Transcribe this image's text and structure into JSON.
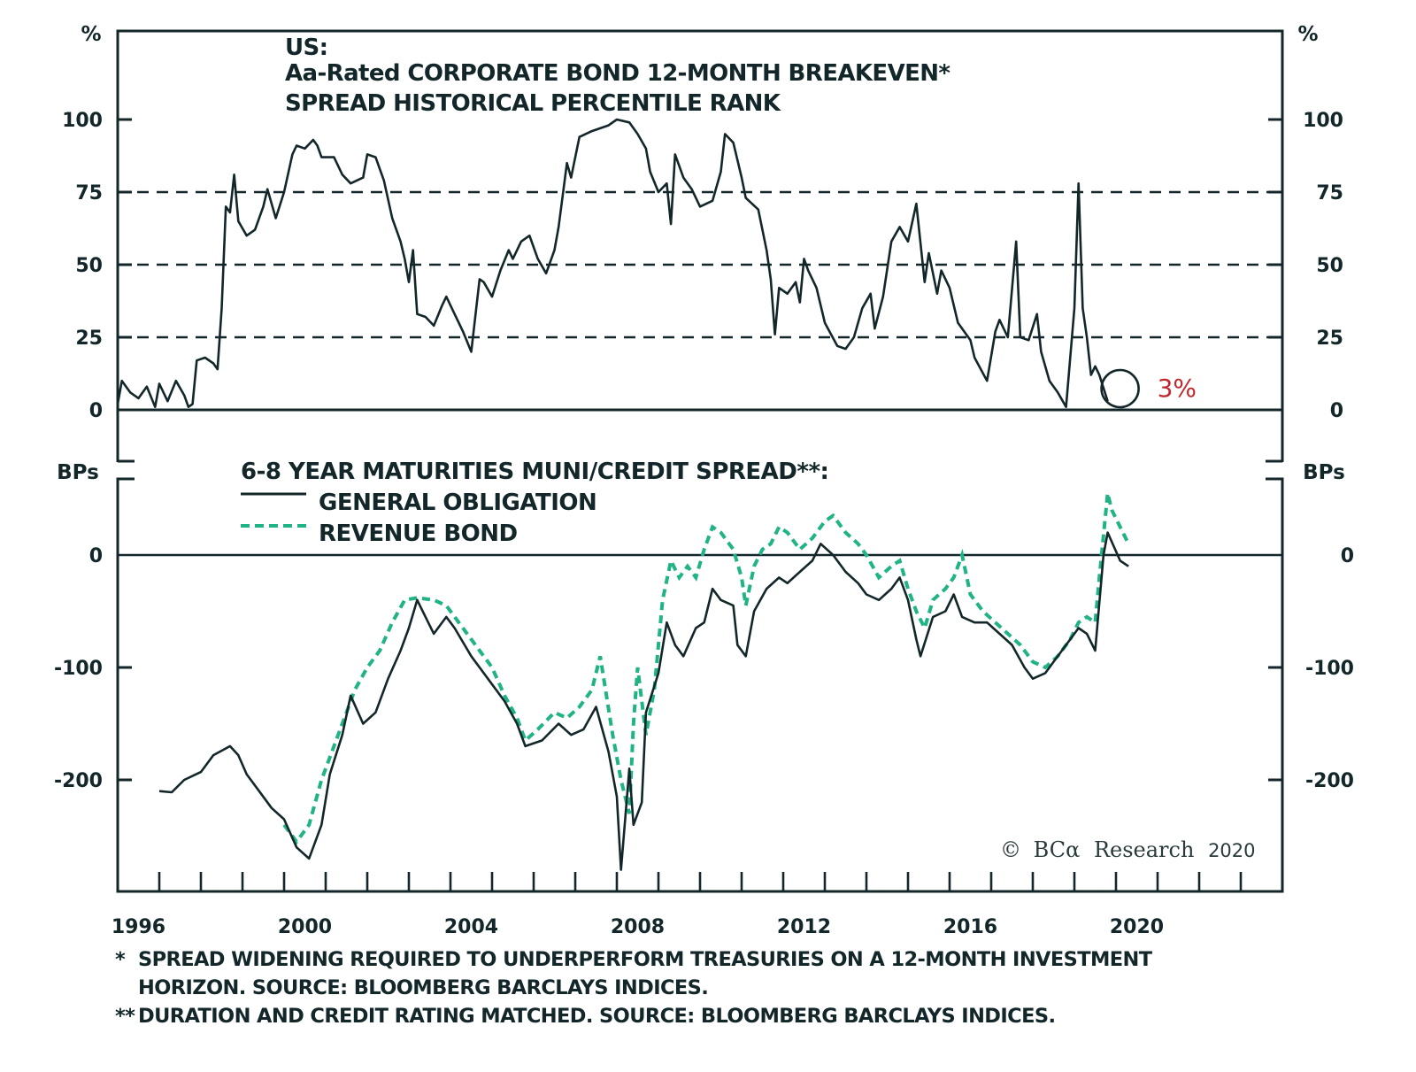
{
  "chart_data": [
    {
      "type": "line",
      "panel": "top",
      "title_lines": [
        "US:",
        "Aa-Rated CORPORATE BOND 12-MONTH BREAKEVEN*",
        "SPREAD HISTORICAL PERCENTILE RANK"
      ],
      "ylabel": "%",
      "ylim": [
        0,
        100
      ],
      "yticks": [
        0,
        25,
        50,
        75,
        100
      ],
      "ytick_labels": [
        "0",
        "25",
        "50",
        "75",
        "100"
      ],
      "reference_lines": [
        25,
        50,
        75
      ],
      "reference_style": "dashed",
      "annotation": {
        "text": "3%",
        "x": 2019.8,
        "y": 3,
        "marker": "circle",
        "color": "#c0282e"
      },
      "series": [
        {
          "name": "Aa-Rated corporate bond 12-month breakeven spread percentile rank",
          "color": "#13272a",
          "style": "solid",
          "x": [
            1996.0,
            1996.1,
            1996.3,
            1996.5,
            1996.7,
            1996.9,
            1997.0,
            1997.2,
            1997.4,
            1997.6,
            1997.7,
            1997.8,
            1997.9,
            1998.1,
            1998.3,
            1998.4,
            1998.5,
            1998.6,
            1998.7,
            1998.8,
            1998.9,
            1999.1,
            1999.3,
            1999.5,
            1999.6,
            1999.8,
            2000.0,
            2000.2,
            2000.3,
            2000.5,
            2000.7,
            2000.8,
            2000.9,
            2001.2,
            2001.4,
            2001.6,
            2001.9,
            2002.0,
            2002.2,
            2002.4,
            2002.6,
            2002.8,
            2002.9,
            2003.0,
            2003.1,
            2003.2,
            2003.4,
            2003.6,
            2003.8,
            2003.9,
            2004.1,
            2004.3,
            2004.5,
            2004.7,
            2004.8,
            2005.0,
            2005.2,
            2005.4,
            2005.5,
            2005.7,
            2005.9,
            2006.1,
            2006.3,
            2006.5,
            2006.6,
            2006.8,
            2006.9,
            2007.1,
            2007.4,
            2007.8,
            2008.0,
            2008.3,
            2008.5,
            2008.7,
            2008.8,
            2009.0,
            2009.2,
            2009.3,
            2009.4,
            2009.6,
            2009.8,
            2010.0,
            2010.3,
            2010.5,
            2010.6,
            2010.8,
            2011.0,
            2011.1,
            2011.4,
            2011.6,
            2011.7,
            2011.8,
            2011.9,
            2012.1,
            2012.3,
            2012.4,
            2012.5,
            2012.6,
            2012.8,
            2013.0,
            2013.3,
            2013.5,
            2013.7,
            2013.9,
            2014.1,
            2014.2,
            2014.4,
            2014.6,
            2014.8,
            2015.0,
            2015.2,
            2015.4,
            2015.5,
            2015.7,
            2015.8,
            2016.0,
            2016.2,
            2016.5,
            2016.6,
            2016.9,
            2017.1,
            2017.2,
            2017.4,
            2017.6,
            2017.7,
            2017.9,
            2018.1,
            2018.2,
            2018.4,
            2018.6,
            2018.8,
            2019.0,
            2019.1,
            2019.2,
            2019.3,
            2019.4,
            2019.5,
            2019.6,
            2019.8
          ],
          "y": [
            2,
            10,
            6,
            4,
            8,
            1,
            9,
            3,
            10,
            5,
            1,
            2,
            17,
            18,
            16,
            14,
            35,
            70,
            68,
            81,
            65,
            60,
            62,
            70,
            76,
            66,
            75,
            88,
            91,
            90,
            93,
            91,
            87,
            87,
            81,
            78,
            80,
            88,
            87,
            79,
            66,
            58,
            52,
            44,
            55,
            33,
            32,
            29,
            36,
            39,
            33,
            27,
            20,
            45,
            44,
            39,
            48,
            55,
            52,
            58,
            60,
            52,
            47,
            55,
            63,
            85,
            80,
            94,
            96,
            98,
            100,
            99,
            95,
            90,
            82,
            75,
            78,
            64,
            88,
            80,
            76,
            70,
            72,
            82,
            95,
            92,
            80,
            73,
            69,
            55,
            45,
            26,
            42,
            40,
            44,
            37,
            52,
            48,
            42,
            30,
            22,
            21,
            25,
            35,
            40,
            28,
            39,
            58,
            63,
            58,
            71,
            44,
            54,
            40,
            48,
            42,
            30,
            24,
            18,
            10,
            27,
            31,
            25,
            58,
            25,
            24,
            33,
            20,
            10,
            6,
            1,
            35,
            78,
            35,
            25,
            12,
            15,
            12,
            3
          ]
        }
      ]
    },
    {
      "type": "line",
      "panel": "bottom",
      "title": "6-8 YEAR MATURITIES MUNI/CREDIT SPREAD**:",
      "ylabel": "BPs",
      "ylim": [
        -290,
        75
      ],
      "yticks": [
        -200,
        -100,
        0
      ],
      "ytick_labels": [
        "-200",
        "-100",
        "0"
      ],
      "reference_lines": [
        0
      ],
      "legend": "top-left",
      "series": [
        {
          "name": "GENERAL OBLIGATION",
          "color": "#13272a",
          "style": "solid",
          "x": [
            1997.0,
            1997.3,
            1997.6,
            1998.0,
            1998.3,
            1998.7,
            1998.9,
            1999.1,
            1999.4,
            1999.7,
            2000.0,
            2000.3,
            2000.6,
            2000.9,
            2001.1,
            2001.4,
            2001.6,
            2001.9,
            2002.2,
            2002.5,
            2002.8,
            2003.0,
            2003.2,
            2003.4,
            2003.6,
            2003.9,
            2004.1,
            2004.5,
            2004.9,
            2005.3,
            2005.6,
            2005.8,
            2006.2,
            2006.6,
            2006.9,
            2007.2,
            2007.5,
            2007.8,
            2008.0,
            2008.1,
            2008.3,
            2008.4,
            2008.6,
            2008.7,
            2009.0,
            2009.2,
            2009.4,
            2009.6,
            2009.9,
            2010.1,
            2010.3,
            2010.5,
            2010.8,
            2010.9,
            2011.1,
            2011.3,
            2011.6,
            2011.9,
            2012.1,
            2012.4,
            2012.7,
            2012.9,
            2013.2,
            2013.5,
            2013.8,
            2014.0,
            2014.3,
            2014.6,
            2014.8,
            2015.0,
            2015.2,
            2015.3,
            2015.6,
            2015.9,
            2016.1,
            2016.3,
            2016.6,
            2016.9,
            2017.2,
            2017.5,
            2017.8,
            2018.0,
            2018.3,
            2018.5,
            2018.8,
            2019.1,
            2019.3,
            2019.5,
            2019.7,
            2019.8,
            2020.1,
            2020.3
          ],
          "y": [
            -210,
            -211,
            -200,
            -193,
            -178,
            -170,
            -178,
            -195,
            -210,
            -225,
            -235,
            -260,
            -270,
            -240,
            -195,
            -160,
            -125,
            -150,
            -140,
            -110,
            -85,
            -65,
            -40,
            -55,
            -70,
            -55,
            -65,
            -90,
            -110,
            -130,
            -150,
            -170,
            -165,
            -150,
            -160,
            -155,
            -135,
            -175,
            -215,
            -280,
            -190,
            -240,
            -220,
            -140,
            -105,
            -60,
            -80,
            -90,
            -65,
            -60,
            -30,
            -40,
            -45,
            -80,
            -90,
            -50,
            -30,
            -20,
            -25,
            -15,
            -5,
            10,
            0,
            -15,
            -25,
            -35,
            -40,
            -30,
            -20,
            -40,
            -75,
            -90,
            -55,
            -50,
            -35,
            -55,
            -60,
            -60,
            -70,
            -80,
            -100,
            -110,
            -105,
            -95,
            -80,
            -65,
            -70,
            -85,
            0,
            20,
            -5,
            -10
          ]
        },
        {
          "name": "REVENUE BOND",
          "color": "#1fb386",
          "style": "dashed",
          "x": [
            2000.0,
            2000.3,
            2000.6,
            2000.9,
            2001.3,
            2001.7,
            2002.0,
            2002.3,
            2002.6,
            2002.9,
            2003.2,
            2003.6,
            2003.9,
            2004.2,
            2004.6,
            2005.0,
            2005.3,
            2005.6,
            2005.8,
            2006.1,
            2006.5,
            2006.8,
            2007.1,
            2007.4,
            2007.6,
            2007.9,
            2008.1,
            2008.3,
            2008.4,
            2008.5,
            2008.7,
            2008.9,
            2009.0,
            2009.1,
            2009.3,
            2009.5,
            2009.7,
            2009.9,
            2010.1,
            2010.3,
            2010.5,
            2010.8,
            2011.0,
            2011.1,
            2011.3,
            2011.5,
            2011.7,
            2011.9,
            2012.1,
            2012.4,
            2012.7,
            2013.0,
            2013.2,
            2013.5,
            2013.8,
            2014.0,
            2014.3,
            2014.6,
            2014.8,
            2015.0,
            2015.2,
            2015.4,
            2015.6,
            2015.9,
            2016.1,
            2016.3,
            2016.5,
            2016.8,
            2017.1,
            2017.4,
            2017.7,
            2018.0,
            2018.3,
            2018.6,
            2018.9,
            2019.1,
            2019.3,
            2019.5,
            2019.6,
            2019.8,
            2019.9,
            2020.1,
            2020.3
          ],
          "y": [
            -240,
            -255,
            -240,
            -200,
            -160,
            -120,
            -100,
            -85,
            -60,
            -40,
            -38,
            -40,
            -45,
            -60,
            -80,
            -100,
            -125,
            -145,
            -165,
            -155,
            -140,
            -145,
            -135,
            -120,
            -90,
            -160,
            -200,
            -230,
            -150,
            -100,
            -160,
            -120,
            -80,
            -40,
            -5,
            -20,
            -10,
            -20,
            5,
            25,
            20,
            5,
            -20,
            -45,
            -10,
            5,
            10,
            25,
            20,
            5,
            15,
            30,
            35,
            20,
            10,
            0,
            -20,
            -10,
            -5,
            -30,
            -50,
            -65,
            -40,
            -30,
            -20,
            0,
            -35,
            -50,
            -60,
            -70,
            -80,
            -95,
            -100,
            -90,
            -75,
            -60,
            -55,
            -60,
            -20,
            55,
            40,
            25,
            10
          ]
        }
      ]
    }
  ],
  "xaxis": {
    "xlim": [
      1996,
      2024
    ],
    "tick_labels": [
      "1996",
      "2000",
      "2004",
      "2008",
      "2012",
      "2016",
      "2020"
    ],
    "tick_label_years": [
      1996,
      2000,
      2004,
      2008,
      2012,
      2016,
      2020
    ],
    "minor_tick_step_years": 1
  },
  "credit": {
    "copyright_symbol": "©",
    "brand": "BCα",
    "name": "Research",
    "year": "2020"
  },
  "footnotes": [
    {
      "mark": "*",
      "lines": [
        "SPREAD WIDENING REQUIRED TO UNDERPERFORM TREASURIES ON A 12-MONTH INVESTMENT",
        "HORIZON. SOURCE: BLOOMBERG BARCLAYS INDICES."
      ]
    },
    {
      "mark": "**",
      "lines": [
        "DURATION AND CREDIT RATING MATCHED. SOURCE: BLOOMBERG BARCLAYS INDICES."
      ]
    }
  ]
}
